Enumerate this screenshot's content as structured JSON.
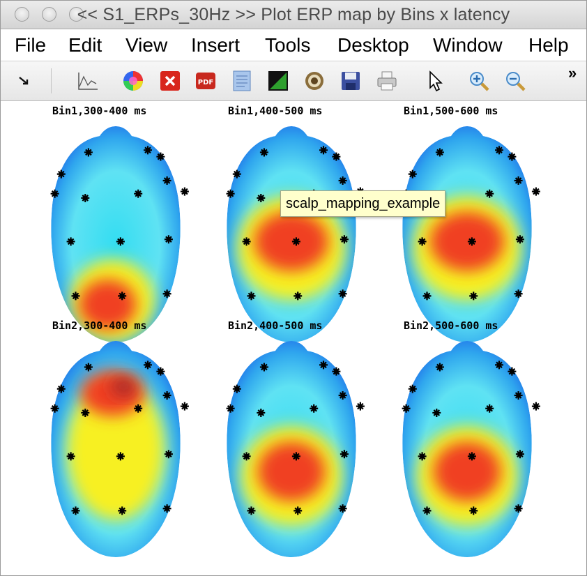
{
  "window": {
    "title": "<< S1_ERPs_30Hz >>  Plot ERP map by Bins x latency"
  },
  "menu": [
    "File",
    "Edit",
    "View",
    "Insert",
    "Tools",
    "Desktop",
    "Window",
    "Help"
  ],
  "toolbar": {
    "buttons": [
      "dock-arrow",
      "line-plot",
      "colormap",
      "close-figure",
      "pdf",
      "document",
      "color-toggle",
      "target",
      "save",
      "print",
      "pointer",
      "zoom-in",
      "zoom-out"
    ],
    "overflow": "»"
  },
  "maps": [
    {
      "label": "Bin1,300-400 ms",
      "bin": "Bin1",
      "latency": "300-400 ms",
      "pattern": "posterior-left"
    },
    {
      "label": "Bin1,400-500 ms",
      "bin": "Bin1",
      "latency": "400-500 ms",
      "pattern": "central"
    },
    {
      "label": "Bin1,500-600 ms",
      "bin": "Bin1",
      "latency": "500-600 ms",
      "pattern": "central"
    },
    {
      "label": "Bin2,300-400 ms",
      "bin": "Bin2",
      "latency": "300-400 ms",
      "pattern": "frontal"
    },
    {
      "label": "Bin2,400-500 ms",
      "bin": "Bin2",
      "latency": "400-500 ms",
      "pattern": "central-posterior"
    },
    {
      "label": "Bin2,500-600 ms",
      "bin": "Bin2",
      "latency": "500-600 ms",
      "pattern": "central-posterior"
    }
  ],
  "tooltip": "scalp_mapping_example",
  "colors": {
    "cold": "#1a5de8",
    "cool": "#33ddf2",
    "warm": "#f7f020",
    "hot": "#f04020",
    "electrode": "#000000"
  }
}
